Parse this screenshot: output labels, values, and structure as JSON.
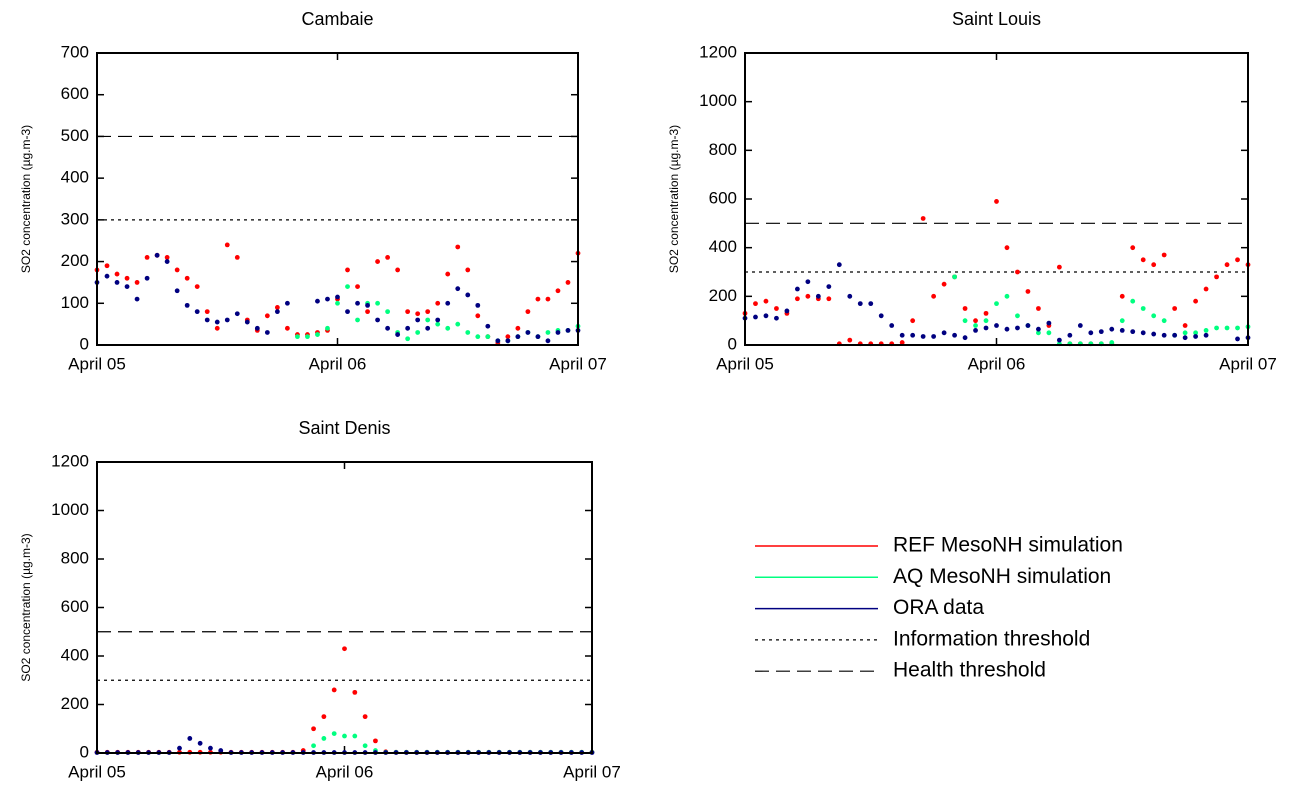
{
  "chart_data": [
    {
      "type": "scatter",
      "title": "Cambaie",
      "ylabel": "SO2 concentration (µg.m-3)",
      "x": [
        0,
        1,
        2,
        3,
        4,
        5,
        6,
        7,
        8,
        9,
        10,
        11,
        12,
        13,
        14,
        15,
        16,
        17,
        18,
        19,
        20,
        21,
        22,
        23,
        24,
        25,
        26,
        27,
        28,
        29,
        30,
        31,
        32,
        33,
        34,
        35,
        36,
        37,
        38,
        39,
        40,
        41,
        42,
        43,
        44,
        45,
        46,
        47,
        48
      ],
      "xlim": [
        0,
        48
      ],
      "xticks": [
        {
          "value": 0,
          "label": "April 05"
        },
        {
          "value": 24,
          "label": "April 06"
        },
        {
          "value": 48,
          "label": "April 07"
        }
      ],
      "ylim": [
        0,
        700
      ],
      "yticks": [
        0,
        100,
        200,
        300,
        400,
        500,
        600,
        700
      ],
      "series": [
        {
          "name": "REF MesoNH simulation",
          "color": "#ff0000",
          "values": [
            180,
            190,
            170,
            160,
            150,
            210,
            215,
            210,
            180,
            160,
            140,
            80,
            40,
            240,
            210,
            60,
            35,
            70,
            90,
            40,
            25,
            25,
            30,
            35,
            110,
            180,
            140,
            80,
            200,
            210,
            180,
            80,
            75,
            80,
            100,
            170,
            235,
            180,
            70,
            20,
            5,
            20,
            40,
            80,
            110,
            110,
            130,
            150,
            220
          ]
        },
        {
          "name": "AQ MesoNH simulation",
          "color": "#00ff80",
          "values": [
            null,
            null,
            null,
            null,
            null,
            null,
            null,
            null,
            null,
            null,
            null,
            null,
            null,
            null,
            null,
            null,
            null,
            null,
            null,
            null,
            20,
            20,
            25,
            40,
            100,
            140,
            60,
            100,
            100,
            80,
            30,
            15,
            30,
            60,
            50,
            40,
            50,
            30,
            20,
            20,
            10,
            10,
            20,
            30,
            20,
            30,
            35,
            35,
            45
          ]
        },
        {
          "name": "ORA data",
          "color": "#000080",
          "values": [
            150,
            165,
            150,
            140,
            110,
            160,
            215,
            200,
            130,
            95,
            80,
            60,
            55,
            60,
            75,
            55,
            40,
            30,
            80,
            100,
            null,
            null,
            105,
            110,
            115,
            80,
            100,
            95,
            60,
            40,
            25,
            40,
            60,
            40,
            60,
            100,
            135,
            120,
            95,
            45,
            10,
            10,
            20,
            30,
            20,
            10,
            30,
            35,
            35
          ]
        }
      ],
      "thresholds": [
        {
          "name": "Information threshold",
          "value": 300,
          "style": "dotted"
        },
        {
          "name": "Health threshold",
          "value": 500,
          "style": "dashed"
        }
      ]
    },
    {
      "type": "scatter",
      "title": "Saint Louis",
      "ylabel": "SO2 concentration (µg.m-3)",
      "x": [
        0,
        1,
        2,
        3,
        4,
        5,
        6,
        7,
        8,
        9,
        10,
        11,
        12,
        13,
        14,
        15,
        16,
        17,
        18,
        19,
        20,
        21,
        22,
        23,
        24,
        25,
        26,
        27,
        28,
        29,
        30,
        31,
        32,
        33,
        34,
        35,
        36,
        37,
        38,
        39,
        40,
        41,
        42,
        43,
        44,
        45,
        46,
        47,
        48
      ],
      "xlim": [
        0,
        48
      ],
      "xticks": [
        {
          "value": 0,
          "label": "April 05"
        },
        {
          "value": 24,
          "label": "April 06"
        },
        {
          "value": 48,
          "label": "April 07"
        }
      ],
      "ylim": [
        0,
        1200
      ],
      "yticks": [
        0,
        200,
        400,
        600,
        800,
        1000,
        1200
      ],
      "series": [
        {
          "color": "#ff0000",
          "values": [
            130,
            170,
            180,
            150,
            130,
            190,
            200,
            190,
            190,
            5,
            20,
            5,
            5,
            5,
            5,
            10,
            100,
            520,
            200,
            250,
            280,
            150,
            100,
            130,
            590,
            400,
            300,
            220,
            150,
            80,
            320,
            5,
            5,
            5,
            5,
            5,
            200,
            400,
            350,
            330,
            370,
            150,
            80,
            180,
            230,
            280,
            330,
            350,
            330
          ]
        },
        {
          "color": "#00ff80",
          "values": [
            null,
            null,
            null,
            null,
            null,
            null,
            null,
            null,
            null,
            null,
            null,
            null,
            null,
            null,
            null,
            null,
            null,
            null,
            null,
            null,
            280,
            100,
            80,
            100,
            170,
            200,
            120,
            80,
            50,
            50,
            5,
            5,
            5,
            5,
            5,
            10,
            100,
            180,
            150,
            120,
            100,
            40,
            50,
            50,
            60,
            70,
            70,
            70,
            75
          ]
        },
        {
          "color": "#000080",
          "values": [
            110,
            115,
            120,
            110,
            140,
            230,
            260,
            200,
            240,
            330,
            200,
            170,
            170,
            120,
            80,
            40,
            40,
            35,
            35,
            50,
            40,
            30,
            60,
            70,
            80,
            65,
            70,
            80,
            65,
            90,
            20,
            40,
            80,
            50,
            55,
            65,
            60,
            55,
            50,
            45,
            40,
            40,
            30,
            35,
            40,
            null,
            null,
            25,
            30
          ]
        }
      ],
      "thresholds": [
        {
          "value": 300,
          "style": "dotted"
        },
        {
          "value": 500,
          "style": "dashed"
        }
      ]
    },
    {
      "type": "scatter",
      "title": "Saint Denis",
      "ylabel": "SO2 concentration (µg.m-3)",
      "x": [
        0,
        1,
        2,
        3,
        4,
        5,
        6,
        7,
        8,
        9,
        10,
        11,
        12,
        13,
        14,
        15,
        16,
        17,
        18,
        19,
        20,
        21,
        22,
        23,
        24,
        25,
        26,
        27,
        28,
        29,
        30,
        31,
        32,
        33,
        34,
        35,
        36,
        37,
        38,
        39,
        40,
        41,
        42,
        43,
        44,
        45,
        46,
        47,
        48
      ],
      "xlim": [
        0,
        48
      ],
      "xticks": [
        {
          "value": 0,
          "label": "April 05"
        },
        {
          "value": 24,
          "label": "April 06"
        },
        {
          "value": 48,
          "label": "April 07"
        }
      ],
      "ylim": [
        0,
        1200
      ],
      "yticks": [
        0,
        200,
        400,
        600,
        800,
        1000,
        1200
      ],
      "series": [
        {
          "color": "#ff0000",
          "values": [
            3,
            3,
            3,
            3,
            3,
            3,
            3,
            3,
            3,
            3,
            3,
            3,
            3,
            3,
            3,
            3,
            3,
            3,
            3,
            3,
            10,
            100,
            150,
            260,
            430,
            250,
            150,
            50,
            5,
            3,
            3,
            3,
            3,
            3,
            3,
            3,
            3,
            3,
            3,
            3,
            3,
            3,
            3,
            3,
            3,
            3,
            3,
            3,
            3
          ]
        },
        {
          "color": "#00ff80",
          "values": [
            null,
            null,
            null,
            null,
            null,
            null,
            null,
            null,
            null,
            null,
            null,
            null,
            null,
            null,
            null,
            null,
            null,
            null,
            null,
            null,
            null,
            30,
            60,
            80,
            70,
            70,
            30,
            10,
            3,
            3,
            3,
            3,
            3,
            3,
            3,
            3,
            3,
            3,
            3,
            3,
            3,
            3,
            3,
            3,
            3,
            3,
            3,
            3,
            3
          ]
        },
        {
          "color": "#000080",
          "values": [
            2,
            2,
            2,
            2,
            2,
            2,
            2,
            2,
            20,
            60,
            40,
            20,
            10,
            2,
            2,
            2,
            2,
            2,
            2,
            2,
            2,
            2,
            2,
            2,
            2,
            2,
            2,
            2,
            2,
            2,
            2,
            2,
            2,
            2,
            2,
            2,
            2,
            2,
            2,
            2,
            2,
            2,
            2,
            2,
            2,
            2,
            2,
            2,
            2
          ]
        }
      ],
      "thresholds": [
        {
          "value": 300,
          "style": "dotted"
        },
        {
          "value": 500,
          "style": "dashed"
        }
      ]
    }
  ]
}
